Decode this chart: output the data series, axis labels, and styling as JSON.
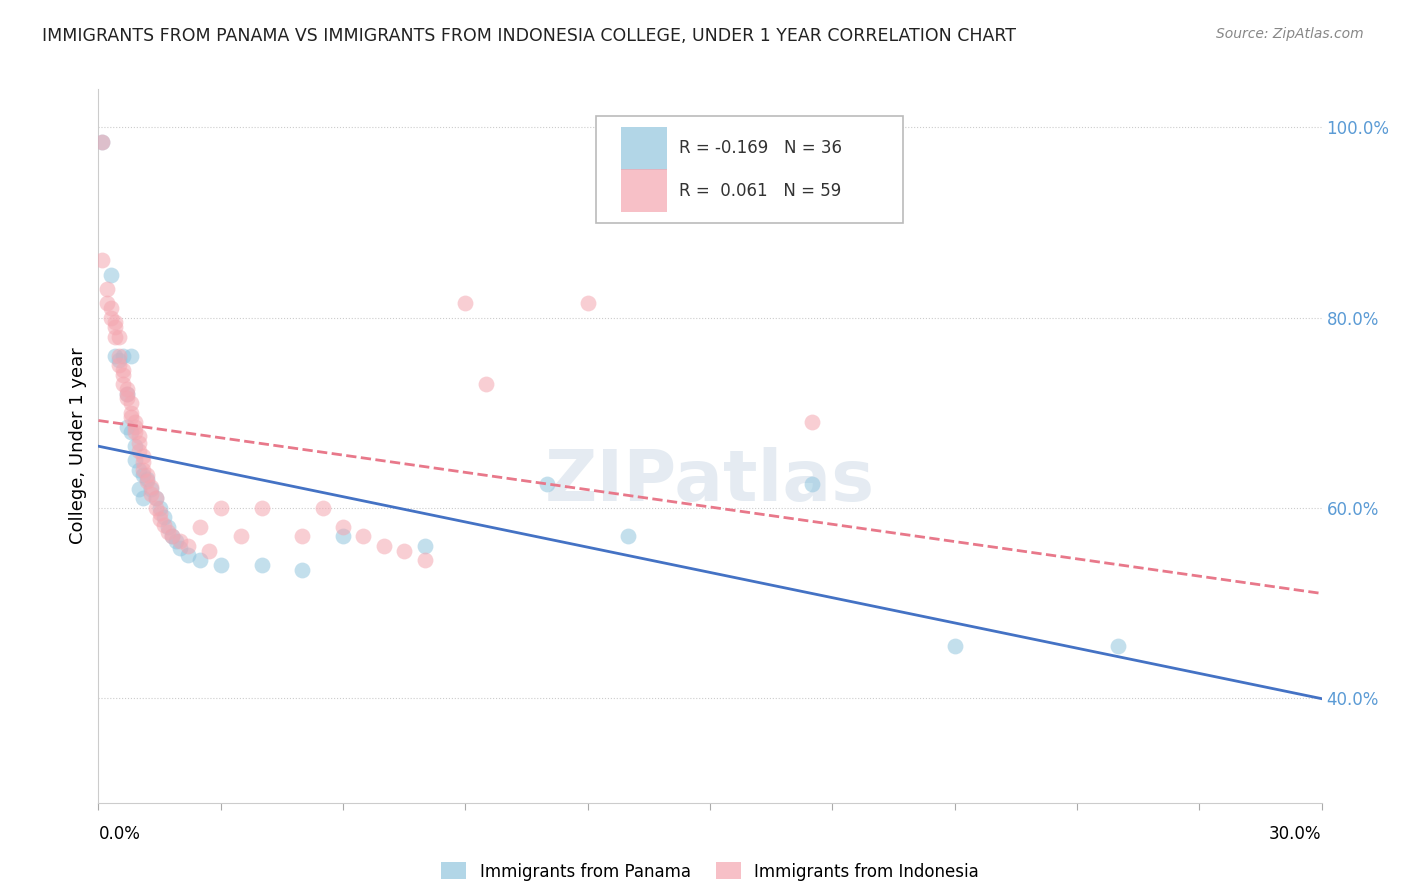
{
  "title": "IMMIGRANTS FROM PANAMA VS IMMIGRANTS FROM INDONESIA COLLEGE, UNDER 1 YEAR CORRELATION CHART",
  "source": "Source: ZipAtlas.com",
  "ylabel": "College, Under 1 year",
  "ylabel_right_labels": [
    "40.0%",
    "60.0%",
    "80.0%",
    "100.0%"
  ],
  "ylabel_right_values": [
    0.4,
    0.6,
    0.8,
    1.0
  ],
  "xlim": [
    0.0,
    0.3
  ],
  "ylim": [
    0.29,
    1.04
  ],
  "legend_panama": {
    "R": -0.169,
    "N": 36
  },
  "legend_indonesia": {
    "R": 0.061,
    "N": 59
  },
  "panama_color": "#92c5de",
  "indonesia_color": "#f4a6b0",
  "trendline_panama_color": "#4472c4",
  "trendline_indonesia_color": "#e8788a",
  "background_color": "#ffffff",
  "grid_color": "#cccccc",
  "panama_scatter": [
    [
      0.001,
      0.985
    ],
    [
      0.003,
      0.845
    ],
    [
      0.004,
      0.76
    ],
    [
      0.005,
      0.755
    ],
    [
      0.006,
      0.76
    ],
    [
      0.007,
      0.72
    ],
    [
      0.007,
      0.685
    ],
    [
      0.008,
      0.76
    ],
    [
      0.008,
      0.68
    ],
    [
      0.009,
      0.665
    ],
    [
      0.009,
      0.65
    ],
    [
      0.01,
      0.64
    ],
    [
      0.01,
      0.62
    ],
    [
      0.011,
      0.635
    ],
    [
      0.011,
      0.61
    ],
    [
      0.012,
      0.63
    ],
    [
      0.013,
      0.62
    ],
    [
      0.014,
      0.61
    ],
    [
      0.015,
      0.6
    ],
    [
      0.016,
      0.59
    ],
    [
      0.017,
      0.58
    ],
    [
      0.018,
      0.57
    ],
    [
      0.019,
      0.565
    ],
    [
      0.02,
      0.558
    ],
    [
      0.022,
      0.55
    ],
    [
      0.025,
      0.545
    ],
    [
      0.03,
      0.54
    ],
    [
      0.04,
      0.54
    ],
    [
      0.05,
      0.535
    ],
    [
      0.06,
      0.57
    ],
    [
      0.08,
      0.56
    ],
    [
      0.11,
      0.625
    ],
    [
      0.13,
      0.57
    ],
    [
      0.175,
      0.625
    ],
    [
      0.21,
      0.455
    ],
    [
      0.25,
      0.455
    ]
  ],
  "indonesia_scatter": [
    [
      0.001,
      0.985
    ],
    [
      0.001,
      0.86
    ],
    [
      0.002,
      0.83
    ],
    [
      0.002,
      0.815
    ],
    [
      0.003,
      0.81
    ],
    [
      0.003,
      0.8
    ],
    [
      0.004,
      0.795
    ],
    [
      0.004,
      0.79
    ],
    [
      0.004,
      0.78
    ],
    [
      0.005,
      0.78
    ],
    [
      0.005,
      0.76
    ],
    [
      0.005,
      0.75
    ],
    [
      0.006,
      0.745
    ],
    [
      0.006,
      0.74
    ],
    [
      0.006,
      0.73
    ],
    [
      0.007,
      0.725
    ],
    [
      0.007,
      0.72
    ],
    [
      0.007,
      0.715
    ],
    [
      0.008,
      0.71
    ],
    [
      0.008,
      0.7
    ],
    [
      0.008,
      0.695
    ],
    [
      0.009,
      0.69
    ],
    [
      0.009,
      0.685
    ],
    [
      0.009,
      0.68
    ],
    [
      0.01,
      0.675
    ],
    [
      0.01,
      0.668
    ],
    [
      0.01,
      0.66
    ],
    [
      0.011,
      0.655
    ],
    [
      0.011,
      0.648
    ],
    [
      0.011,
      0.64
    ],
    [
      0.012,
      0.635
    ],
    [
      0.012,
      0.628
    ],
    [
      0.013,
      0.622
    ],
    [
      0.013,
      0.615
    ],
    [
      0.014,
      0.61
    ],
    [
      0.014,
      0.6
    ],
    [
      0.015,
      0.595
    ],
    [
      0.015,
      0.588
    ],
    [
      0.016,
      0.582
    ],
    [
      0.017,
      0.575
    ],
    [
      0.018,
      0.57
    ],
    [
      0.02,
      0.565
    ],
    [
      0.022,
      0.56
    ],
    [
      0.025,
      0.58
    ],
    [
      0.027,
      0.555
    ],
    [
      0.03,
      0.6
    ],
    [
      0.035,
      0.57
    ],
    [
      0.04,
      0.6
    ],
    [
      0.05,
      0.57
    ],
    [
      0.055,
      0.6
    ],
    [
      0.06,
      0.58
    ],
    [
      0.065,
      0.57
    ],
    [
      0.07,
      0.56
    ],
    [
      0.075,
      0.555
    ],
    [
      0.08,
      0.545
    ],
    [
      0.09,
      0.815
    ],
    [
      0.095,
      0.73
    ],
    [
      0.12,
      0.815
    ],
    [
      0.175,
      0.69
    ]
  ]
}
